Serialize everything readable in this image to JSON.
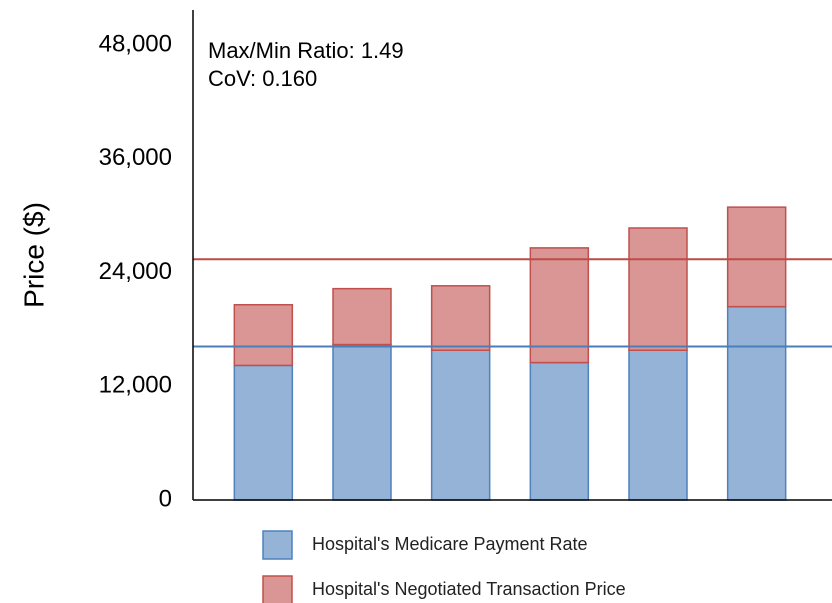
{
  "chart_data": {
    "type": "stacked_bar",
    "y_label": "Price ($)",
    "annotations": [
      "Max/Min Ratio: 1.49",
      "CoV: 0.160"
    ],
    "categories": [
      null,
      null,
      null,
      null,
      null,
      null
    ],
    "series": [
      {
        "name": "Hospital's Medicare Payment Rate",
        "color": "#95b3d7",
        "edge": "#4f81bd",
        "values": [
          14200,
          16400,
          15800,
          14500,
          15800,
          20400
        ]
      },
      {
        "name": "Hospital's Negotiated Transaction Price",
        "color": "#d99694",
        "edge": "#c0504d",
        "values": [
          6400,
          5900,
          6800,
          12100,
          12900,
          10500
        ]
      }
    ],
    "reference_lines": [
      {
        "value": 16200,
        "color": "#4a7ebb"
      },
      {
        "value": 25400,
        "color": "#be4b48"
      }
    ],
    "ylim": [
      0,
      51700
    ],
    "yticks": [
      0,
      {
        "value": 12000,
        "label": "12,000"
      },
      {
        "value": 24000,
        "label": "24,000"
      },
      {
        "value": 36000,
        "label": "36,000"
      },
      {
        "value": 48000,
        "label": "48,000"
      }
    ],
    "grid": false
  }
}
